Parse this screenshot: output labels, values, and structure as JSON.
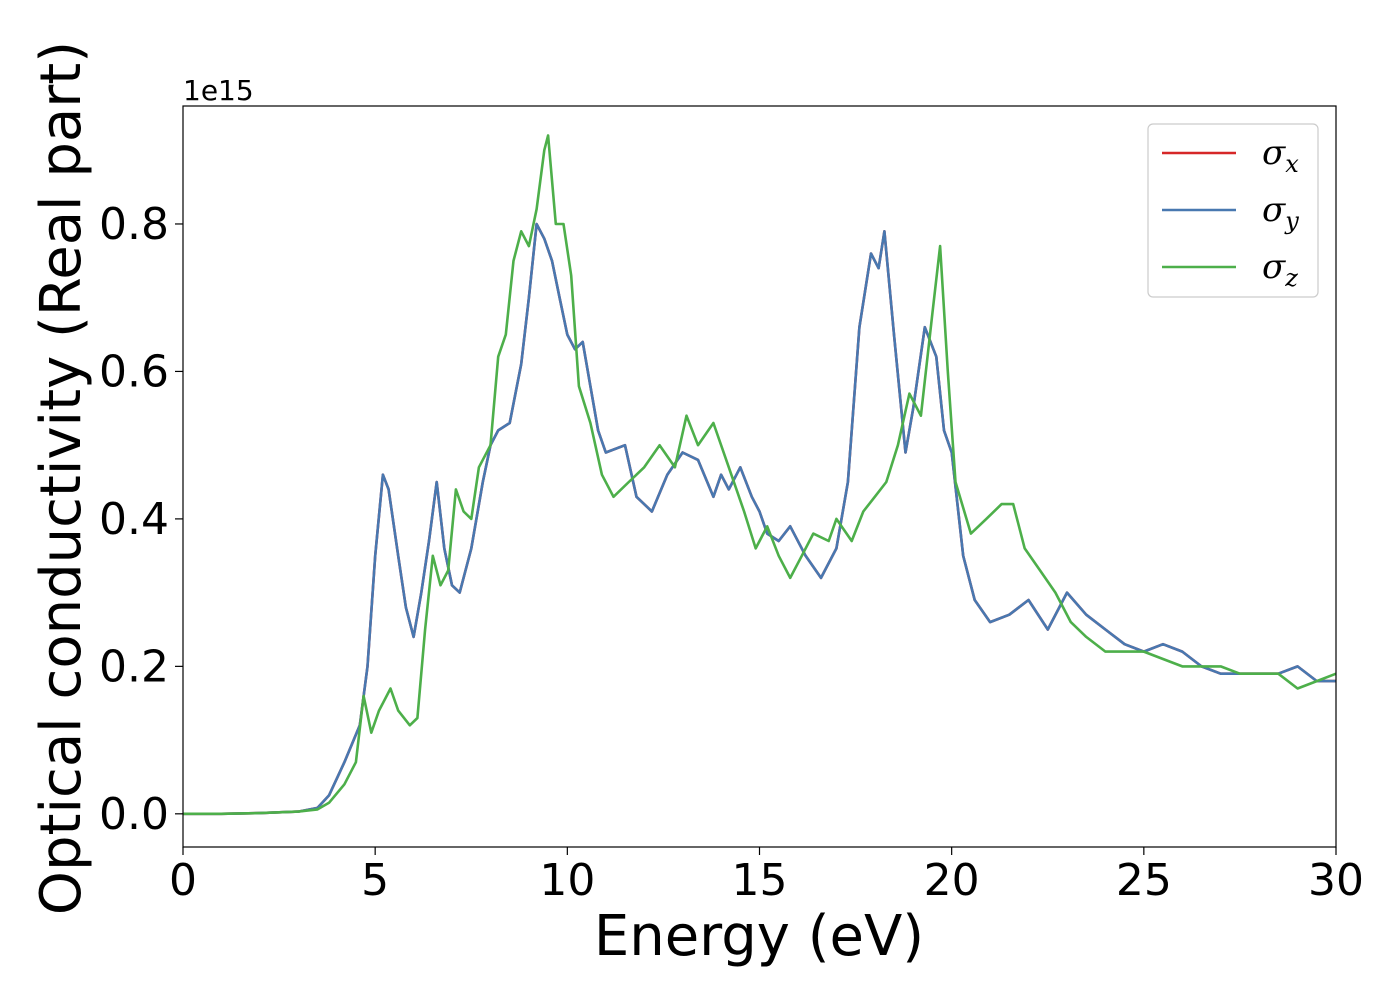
{
  "chart_data": {
    "type": "line",
    "xlabel": "Energy (eV)",
    "ylabel": "Optical conductivity (Real part)",
    "y_offset_label": "1e15",
    "xlim": [
      0,
      30
    ],
    "ylim": [
      -0.045,
      0.96
    ],
    "x_ticks": [
      0,
      5,
      10,
      15,
      20,
      25,
      30
    ],
    "x_tick_labels": [
      "0",
      "5",
      "10",
      "15",
      "20",
      "25",
      "30"
    ],
    "y_ticks": [
      0.0,
      0.2,
      0.4,
      0.6,
      0.8
    ],
    "y_tick_labels": [
      "0.0",
      "0.2",
      "0.4",
      "0.6",
      "0.8"
    ],
    "grid": false,
    "legend_position": "top-right",
    "series": [
      {
        "name": "σ",
        "sub": "x",
        "color": "#d62728",
        "points": [
          [
            0,
            0
          ],
          [
            1,
            0
          ],
          [
            2,
            0.001
          ],
          [
            3,
            0.003
          ],
          [
            3.5,
            0.008
          ],
          [
            3.8,
            0.025
          ],
          [
            4.2,
            0.07
          ],
          [
            4.6,
            0.12
          ],
          [
            4.8,
            0.2
          ],
          [
            5.0,
            0.35
          ],
          [
            5.2,
            0.46
          ],
          [
            5.35,
            0.44
          ],
          [
            5.6,
            0.35
          ],
          [
            5.8,
            0.28
          ],
          [
            6.0,
            0.24
          ],
          [
            6.2,
            0.3
          ],
          [
            6.4,
            0.37
          ],
          [
            6.6,
            0.45
          ],
          [
            6.8,
            0.36
          ],
          [
            7.0,
            0.31
          ],
          [
            7.2,
            0.3
          ],
          [
            7.5,
            0.36
          ],
          [
            7.8,
            0.45
          ],
          [
            8.0,
            0.5
          ],
          [
            8.2,
            0.52
          ],
          [
            8.5,
            0.53
          ],
          [
            8.8,
            0.61
          ],
          [
            9.0,
            0.7
          ],
          [
            9.2,
            0.8
          ],
          [
            9.4,
            0.78
          ],
          [
            9.6,
            0.75
          ],
          [
            9.8,
            0.7
          ],
          [
            10.0,
            0.65
          ],
          [
            10.2,
            0.63
          ],
          [
            10.4,
            0.64
          ],
          [
            10.6,
            0.58
          ],
          [
            10.8,
            0.52
          ],
          [
            11.0,
            0.49
          ],
          [
            11.5,
            0.5
          ],
          [
            11.8,
            0.43
          ],
          [
            12.2,
            0.41
          ],
          [
            12.6,
            0.46
          ],
          [
            13.0,
            0.49
          ],
          [
            13.4,
            0.48
          ],
          [
            13.8,
            0.43
          ],
          [
            14.0,
            0.46
          ],
          [
            14.2,
            0.44
          ],
          [
            14.5,
            0.47
          ],
          [
            14.8,
            0.43
          ],
          [
            15.0,
            0.41
          ],
          [
            15.2,
            0.38
          ],
          [
            15.5,
            0.37
          ],
          [
            15.8,
            0.39
          ],
          [
            16.2,
            0.35
          ],
          [
            16.6,
            0.32
          ],
          [
            17.0,
            0.36
          ],
          [
            17.3,
            0.45
          ],
          [
            17.6,
            0.66
          ],
          [
            17.9,
            0.76
          ],
          [
            18.1,
            0.74
          ],
          [
            18.25,
            0.79
          ],
          [
            18.5,
            0.65
          ],
          [
            18.8,
            0.49
          ],
          [
            19.0,
            0.55
          ],
          [
            19.3,
            0.66
          ],
          [
            19.6,
            0.62
          ],
          [
            19.8,
            0.52
          ],
          [
            20.0,
            0.49
          ],
          [
            20.3,
            0.35
          ],
          [
            20.6,
            0.29
          ],
          [
            21.0,
            0.26
          ],
          [
            21.5,
            0.27
          ],
          [
            22.0,
            0.29
          ],
          [
            22.5,
            0.25
          ],
          [
            23.0,
            0.3
          ],
          [
            23.5,
            0.27
          ],
          [
            24.0,
            0.25
          ],
          [
            24.5,
            0.23
          ],
          [
            25.0,
            0.22
          ],
          [
            25.5,
            0.23
          ],
          [
            26.0,
            0.22
          ],
          [
            26.5,
            0.2
          ],
          [
            27.0,
            0.19
          ],
          [
            27.5,
            0.19
          ],
          [
            28.0,
            0.19
          ],
          [
            28.5,
            0.19
          ],
          [
            29.0,
            0.2
          ],
          [
            29.5,
            0.18
          ],
          [
            30.0,
            0.18
          ]
        ]
      },
      {
        "name": "σ",
        "sub": "y",
        "color": "#4878b0",
        "points": [
          [
            0,
            0
          ],
          [
            1,
            0
          ],
          [
            2,
            0.001
          ],
          [
            3,
            0.003
          ],
          [
            3.5,
            0.008
          ],
          [
            3.8,
            0.025
          ],
          [
            4.2,
            0.07
          ],
          [
            4.6,
            0.12
          ],
          [
            4.8,
            0.2
          ],
          [
            5.0,
            0.35
          ],
          [
            5.2,
            0.46
          ],
          [
            5.35,
            0.44
          ],
          [
            5.6,
            0.35
          ],
          [
            5.8,
            0.28
          ],
          [
            6.0,
            0.24
          ],
          [
            6.2,
            0.3
          ],
          [
            6.4,
            0.37
          ],
          [
            6.6,
            0.45
          ],
          [
            6.8,
            0.36
          ],
          [
            7.0,
            0.31
          ],
          [
            7.2,
            0.3
          ],
          [
            7.5,
            0.36
          ],
          [
            7.8,
            0.45
          ],
          [
            8.0,
            0.5
          ],
          [
            8.2,
            0.52
          ],
          [
            8.5,
            0.53
          ],
          [
            8.8,
            0.61
          ],
          [
            9.0,
            0.7
          ],
          [
            9.2,
            0.8
          ],
          [
            9.4,
            0.78
          ],
          [
            9.6,
            0.75
          ],
          [
            9.8,
            0.7
          ],
          [
            10.0,
            0.65
          ],
          [
            10.2,
            0.63
          ],
          [
            10.4,
            0.64
          ],
          [
            10.6,
            0.58
          ],
          [
            10.8,
            0.52
          ],
          [
            11.0,
            0.49
          ],
          [
            11.5,
            0.5
          ],
          [
            11.8,
            0.43
          ],
          [
            12.2,
            0.41
          ],
          [
            12.6,
            0.46
          ],
          [
            13.0,
            0.49
          ],
          [
            13.4,
            0.48
          ],
          [
            13.8,
            0.43
          ],
          [
            14.0,
            0.46
          ],
          [
            14.2,
            0.44
          ],
          [
            14.5,
            0.47
          ],
          [
            14.8,
            0.43
          ],
          [
            15.0,
            0.41
          ],
          [
            15.2,
            0.38
          ],
          [
            15.5,
            0.37
          ],
          [
            15.8,
            0.39
          ],
          [
            16.2,
            0.35
          ],
          [
            16.6,
            0.32
          ],
          [
            17.0,
            0.36
          ],
          [
            17.3,
            0.45
          ],
          [
            17.6,
            0.66
          ],
          [
            17.9,
            0.76
          ],
          [
            18.1,
            0.74
          ],
          [
            18.25,
            0.79
          ],
          [
            18.5,
            0.65
          ],
          [
            18.8,
            0.49
          ],
          [
            19.0,
            0.55
          ],
          [
            19.3,
            0.66
          ],
          [
            19.6,
            0.62
          ],
          [
            19.8,
            0.52
          ],
          [
            20.0,
            0.49
          ],
          [
            20.3,
            0.35
          ],
          [
            20.6,
            0.29
          ],
          [
            21.0,
            0.26
          ],
          [
            21.5,
            0.27
          ],
          [
            22.0,
            0.29
          ],
          [
            22.5,
            0.25
          ],
          [
            23.0,
            0.3
          ],
          [
            23.5,
            0.27
          ],
          [
            24.0,
            0.25
          ],
          [
            24.5,
            0.23
          ],
          [
            25.0,
            0.22
          ],
          [
            25.5,
            0.23
          ],
          [
            26.0,
            0.22
          ],
          [
            26.5,
            0.2
          ],
          [
            27.0,
            0.19
          ],
          [
            27.5,
            0.19
          ],
          [
            28.0,
            0.19
          ],
          [
            28.5,
            0.19
          ],
          [
            29.0,
            0.2
          ],
          [
            29.5,
            0.18
          ],
          [
            30.0,
            0.18
          ]
        ]
      },
      {
        "name": "σ",
        "sub": "z",
        "color": "#4daf4a",
        "points": [
          [
            0,
            0
          ],
          [
            1,
            0
          ],
          [
            2,
            0.001
          ],
          [
            3,
            0.003
          ],
          [
            3.5,
            0.006
          ],
          [
            3.8,
            0.015
          ],
          [
            4.2,
            0.04
          ],
          [
            4.5,
            0.07
          ],
          [
            4.7,
            0.16
          ],
          [
            4.9,
            0.11
          ],
          [
            5.1,
            0.14
          ],
          [
            5.4,
            0.17
          ],
          [
            5.6,
            0.14
          ],
          [
            5.9,
            0.12
          ],
          [
            6.1,
            0.13
          ],
          [
            6.3,
            0.25
          ],
          [
            6.5,
            0.35
          ],
          [
            6.7,
            0.31
          ],
          [
            6.9,
            0.33
          ],
          [
            7.1,
            0.44
          ],
          [
            7.3,
            0.41
          ],
          [
            7.5,
            0.4
          ],
          [
            7.7,
            0.47
          ],
          [
            8.0,
            0.5
          ],
          [
            8.2,
            0.62
          ],
          [
            8.4,
            0.65
          ],
          [
            8.6,
            0.75
          ],
          [
            8.8,
            0.79
          ],
          [
            9.0,
            0.77
          ],
          [
            9.2,
            0.82
          ],
          [
            9.4,
            0.9
          ],
          [
            9.5,
            0.92
          ],
          [
            9.7,
            0.8
          ],
          [
            9.9,
            0.8
          ],
          [
            10.1,
            0.73
          ],
          [
            10.3,
            0.58
          ],
          [
            10.6,
            0.53
          ],
          [
            10.9,
            0.46
          ],
          [
            11.2,
            0.43
          ],
          [
            11.6,
            0.45
          ],
          [
            12.0,
            0.47
          ],
          [
            12.4,
            0.5
          ],
          [
            12.8,
            0.47
          ],
          [
            13.1,
            0.54
          ],
          [
            13.4,
            0.5
          ],
          [
            13.8,
            0.53
          ],
          [
            14.2,
            0.47
          ],
          [
            14.6,
            0.41
          ],
          [
            14.9,
            0.36
          ],
          [
            15.2,
            0.39
          ],
          [
            15.5,
            0.35
          ],
          [
            15.8,
            0.32
          ],
          [
            16.1,
            0.35
          ],
          [
            16.4,
            0.38
          ],
          [
            16.8,
            0.37
          ],
          [
            17.0,
            0.4
          ],
          [
            17.4,
            0.37
          ],
          [
            17.7,
            0.41
          ],
          [
            18.0,
            0.43
          ],
          [
            18.3,
            0.45
          ],
          [
            18.6,
            0.5
          ],
          [
            18.9,
            0.57
          ],
          [
            19.2,
            0.54
          ],
          [
            19.5,
            0.68
          ],
          [
            19.7,
            0.77
          ],
          [
            19.9,
            0.6
          ],
          [
            20.1,
            0.45
          ],
          [
            20.5,
            0.38
          ],
          [
            20.9,
            0.4
          ],
          [
            21.3,
            0.42
          ],
          [
            21.6,
            0.42
          ],
          [
            21.9,
            0.36
          ],
          [
            22.3,
            0.33
          ],
          [
            22.7,
            0.3
          ],
          [
            23.1,
            0.26
          ],
          [
            23.5,
            0.24
          ],
          [
            24.0,
            0.22
          ],
          [
            24.5,
            0.22
          ],
          [
            25.0,
            0.22
          ],
          [
            25.5,
            0.21
          ],
          [
            26.0,
            0.2
          ],
          [
            26.5,
            0.2
          ],
          [
            27.0,
            0.2
          ],
          [
            27.5,
            0.19
          ],
          [
            28.0,
            0.19
          ],
          [
            28.5,
            0.19
          ],
          [
            29.0,
            0.17
          ],
          [
            29.5,
            0.18
          ],
          [
            30.0,
            0.19
          ]
        ]
      }
    ]
  }
}
